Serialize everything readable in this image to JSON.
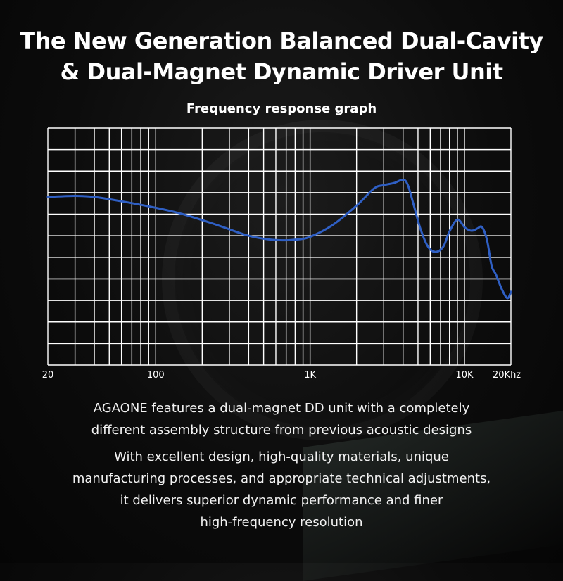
{
  "page": {
    "title_lines": [
      "The New Generation Balanced Dual-Cavity",
      "& Dual-Magnet Dynamic Driver Unit"
    ],
    "description_1": [
      "AGAONE features a dual-magnet DD unit with a completely",
      "different assembly structure from previous acoustic designs"
    ],
    "description_2": [
      "With excellent design, high-quality materials, unique",
      "manufacturing processes, and appropriate technical adjustments,",
      "it delivers superior dynamic performance and finer",
      "high-frequency resolution"
    ]
  },
  "chart_data": {
    "type": "line",
    "title": "Frequency response graph",
    "xscale": "log",
    "xlim": [
      20,
      20000
    ],
    "xticks": [
      {
        "value": 20,
        "label": "20"
      },
      {
        "value": 100,
        "label": "100"
      },
      {
        "value": 1000,
        "label": "1K"
      },
      {
        "value": 10000,
        "label": "10K"
      },
      {
        "value": 20000,
        "label": "20Khz"
      }
    ],
    "ylim": [
      0,
      11
    ],
    "grid": true,
    "grid_color": "#ffffff",
    "series": [
      {
        "color": "#2f5fc4",
        "x": [
          20,
          30,
          40,
          60,
          100,
          150,
          250,
          400,
          600,
          800,
          1000,
          1400,
          2000,
          2600,
          3000,
          3500,
          4000,
          4300,
          4700,
          5200,
          5800,
          6500,
          7300,
          8000,
          9000,
          10000,
          10800,
          11500,
          12200,
          13000,
          14000,
          15000,
          16000,
          17500,
          19000,
          20000
        ],
        "y": [
          7.8,
          7.85,
          7.8,
          7.6,
          7.3,
          7.0,
          6.5,
          6.0,
          5.8,
          5.82,
          5.95,
          6.5,
          7.4,
          8.2,
          8.35,
          8.45,
          8.6,
          8.35,
          7.4,
          6.3,
          5.5,
          5.25,
          5.5,
          6.2,
          6.75,
          6.4,
          6.25,
          6.25,
          6.35,
          6.4,
          5.8,
          4.6,
          4.2,
          3.5,
          3.1,
          3.4
        ]
      }
    ]
  }
}
